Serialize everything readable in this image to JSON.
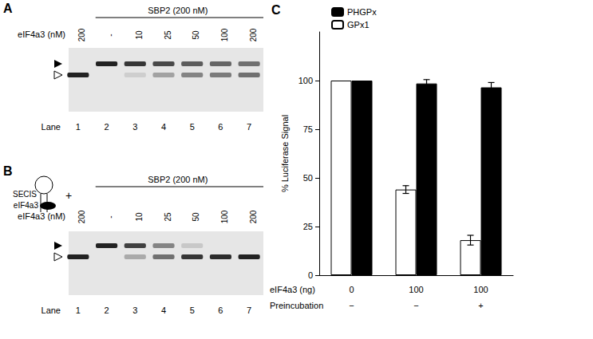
{
  "panels": {
    "A": {
      "label": "A",
      "header": "SBP2 (200 nM)",
      "row_label": "eIF4a3 (nM)",
      "lanes": [
        "200",
        "-",
        "10",
        "25",
        "50",
        "100",
        "200"
      ],
      "lane_label": "Lane",
      "lane_numbers": [
        "1",
        "2",
        "3",
        "4",
        "5",
        "6",
        "7"
      ]
    },
    "B": {
      "label": "B",
      "header": "SBP2 (200 nM)",
      "row_label": "eIF4a3 (nM)",
      "diagram": {
        "loop": "SECIS",
        "protein": "eIF4a3",
        "plus": "+"
      },
      "lanes": [
        "200",
        "-",
        "10",
        "25",
        "50",
        "100",
        "200"
      ],
      "lane_label": "Lane",
      "lane_numbers": [
        "1",
        "2",
        "3",
        "4",
        "5",
        "6",
        "7"
      ]
    }
  },
  "chart_data": {
    "type": "bar",
    "panel_label": "C",
    "categories": [
      "0",
      "100",
      "100"
    ],
    "x_label": "eIF4a3 (ng)",
    "x_row2": {
      "label": "Preincubation",
      "values": [
        "−",
        "−",
        "+"
      ]
    },
    "y_label": "% Luciferase Signal",
    "ylim": [
      0,
      125
    ],
    "yticks": [
      0,
      25,
      50,
      75,
      100
    ],
    "grid": false,
    "legend": "upper left",
    "series": [
      {
        "name": "GPx1",
        "color": "#ffffff",
        "values": [
          100,
          44,
          18
        ],
        "errors": [
          0,
          2,
          2.5
        ]
      },
      {
        "name": "PHGPx",
        "color": "#000000",
        "values": [
          100,
          98.5,
          96.5
        ],
        "errors": [
          0,
          2,
          2.5
        ]
      }
    ]
  }
}
